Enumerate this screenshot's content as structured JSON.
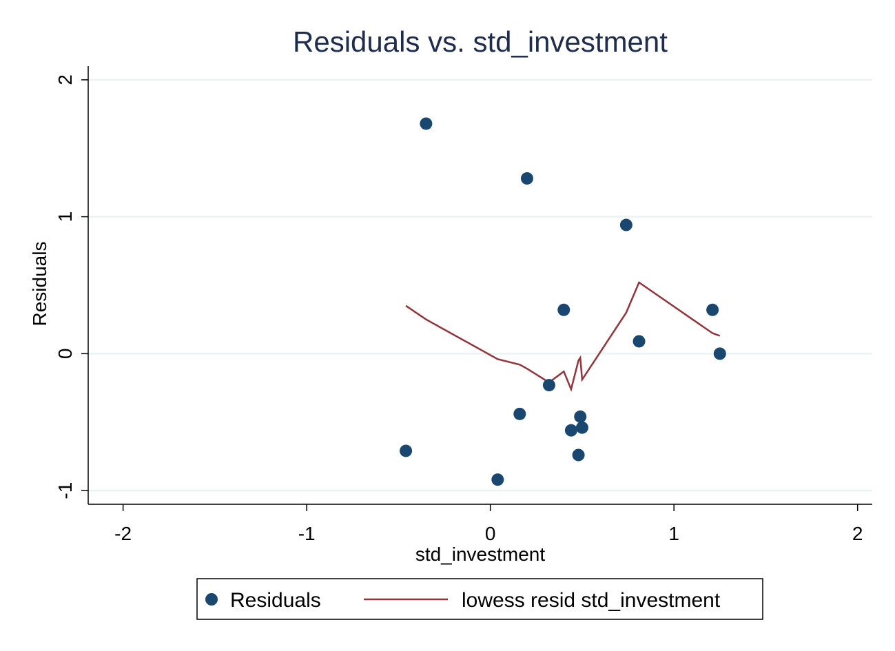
{
  "chart_data": {
    "type": "scatter",
    "title": "Residuals vs. std_investment",
    "xlabel": "std_investment",
    "ylabel": "Residuals",
    "xlim": [
      -2.19,
      2.08
    ],
    "ylim": [
      -1.1,
      2.1
    ],
    "xticks": [
      -2,
      -1,
      0,
      1,
      2
    ],
    "yticks": [
      -1,
      0,
      1,
      2
    ],
    "grid": "horizontal",
    "legend_position": "bottom",
    "colors": {
      "scatter": "#1a476f",
      "lowess": "#90353b",
      "grid": "#eaf2f3",
      "title": "#1f2d4d"
    },
    "series": [
      {
        "name": "Residuals",
        "kind": "scatter",
        "points": [
          {
            "x": -0.35,
            "y": 1.68
          },
          {
            "x": 0.2,
            "y": 1.28
          },
          {
            "x": 0.74,
            "y": 0.94
          },
          {
            "x": 0.4,
            "y": 0.32
          },
          {
            "x": 1.21,
            "y": 0.32
          },
          {
            "x": 0.81,
            "y": 0.09
          },
          {
            "x": 1.25,
            "y": 0.0
          },
          {
            "x": 0.32,
            "y": -0.23
          },
          {
            "x": 0.16,
            "y": -0.44
          },
          {
            "x": 0.49,
            "y": -0.46
          },
          {
            "x": 0.5,
            "y": -0.54
          },
          {
            "x": 0.44,
            "y": -0.56
          },
          {
            "x": -0.46,
            "y": -0.71
          },
          {
            "x": 0.48,
            "y": -0.74
          },
          {
            "x": 0.04,
            "y": -0.92
          }
        ]
      },
      {
        "name": "lowess resid std_investment",
        "kind": "line",
        "points": [
          {
            "x": -0.46,
            "y": 0.35
          },
          {
            "x": -0.35,
            "y": 0.25
          },
          {
            "x": 0.04,
            "y": -0.04
          },
          {
            "x": 0.16,
            "y": -0.08
          },
          {
            "x": 0.2,
            "y": -0.11
          },
          {
            "x": 0.32,
            "y": -0.21
          },
          {
            "x": 0.4,
            "y": -0.13
          },
          {
            "x": 0.44,
            "y": -0.26
          },
          {
            "x": 0.48,
            "y": -0.05
          },
          {
            "x": 0.49,
            "y": -0.03
          },
          {
            "x": 0.5,
            "y": -0.19
          },
          {
            "x": 0.74,
            "y": 0.3
          },
          {
            "x": 0.81,
            "y": 0.52
          },
          {
            "x": 1.21,
            "y": 0.15
          },
          {
            "x": 1.25,
            "y": 0.13
          }
        ]
      }
    ]
  }
}
